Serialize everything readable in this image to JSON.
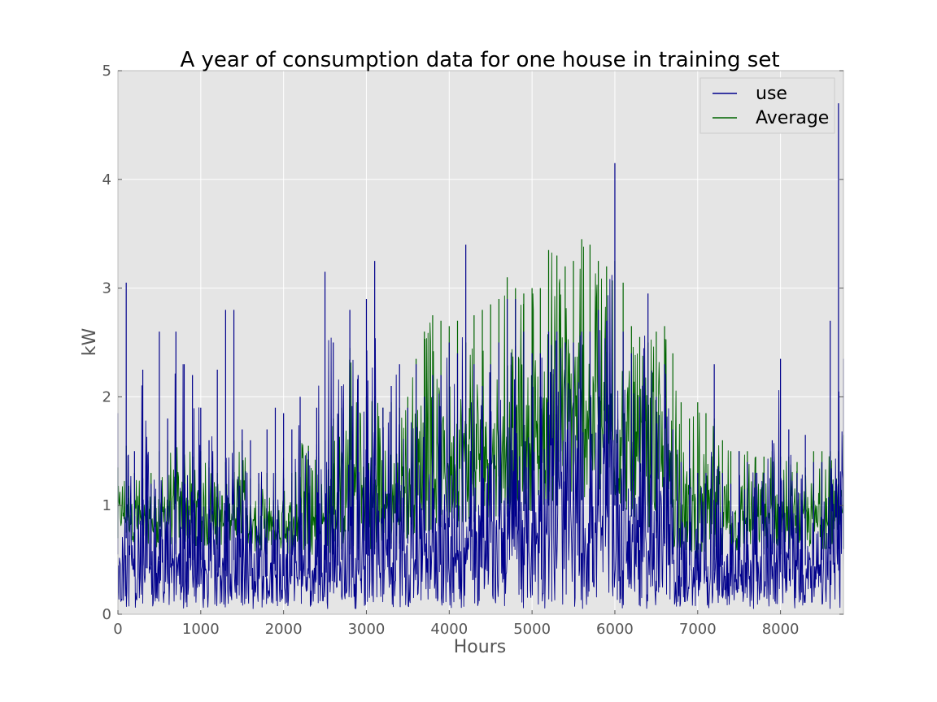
{
  "chart_data": {
    "type": "line",
    "title": "A year of consumption data for one house in training set",
    "xlabel": "Hours",
    "ylabel": "kW",
    "xlim": [
      0,
      8760
    ],
    "ylim": [
      0,
      5
    ],
    "xticks": [
      0,
      1000,
      2000,
      3000,
      4000,
      5000,
      6000,
      7000,
      8000
    ],
    "yticks": [
      0,
      1,
      2,
      3,
      4,
      5
    ],
    "grid": true,
    "legend_position": "top-right",
    "series": [
      {
        "name": "use",
        "color": "#00008b",
        "x": [
          0,
          100,
          200,
          300,
          400,
          500,
          600,
          700,
          800,
          900,
          1000,
          1100,
          1200,
          1300,
          1400,
          1500,
          1600,
          1700,
          1800,
          1900,
          2000,
          2100,
          2200,
          2300,
          2400,
          2500,
          2600,
          2700,
          2800,
          2900,
          3000,
          3100,
          3200,
          3300,
          3400,
          3500,
          3600,
          3700,
          3800,
          3900,
          4000,
          4100,
          4200,
          4300,
          4400,
          4500,
          4600,
          4700,
          4800,
          4900,
          5000,
          5100,
          5200,
          5300,
          5400,
          5500,
          5600,
          5700,
          5800,
          5900,
          6000,
          6100,
          6200,
          6300,
          6400,
          6500,
          6600,
          6700,
          6800,
          6900,
          7000,
          7100,
          7200,
          7300,
          7400,
          7500,
          7600,
          7700,
          7800,
          7900,
          8000,
          8100,
          8200,
          8300,
          8400,
          8500,
          8600,
          8700,
          8760
        ],
        "y_min": [
          0.05,
          0.05,
          0.05,
          0.05,
          0.05,
          0.05,
          0.05,
          0.05,
          0.05,
          0.05,
          0.05,
          0.05,
          0.05,
          0.05,
          0.05,
          0.05,
          0.05,
          0.05,
          0.05,
          0.05,
          0.05,
          0.05,
          0.05,
          0.05,
          0.05,
          0.05,
          0.05,
          0.05,
          0.05,
          0.05,
          0.05,
          0.05,
          0.05,
          0.05,
          0.05,
          0.05,
          0.05,
          0.05,
          0.05,
          0.05,
          0.05,
          0.05,
          0.05,
          0.05,
          0.05,
          0.05,
          0.05,
          0.05,
          0.05,
          0.05,
          0.05,
          0.05,
          0.05,
          0.05,
          0.05,
          0.05,
          0.05,
          0.05,
          0.05,
          0.05,
          0.05,
          0.05,
          0.05,
          0.05,
          0.05,
          0.05,
          0.05,
          0.05,
          0.05,
          0.05,
          0.05,
          0.05,
          0.05,
          0.05,
          0.05,
          0.05,
          0.05,
          0.05,
          0.05,
          0.05,
          0.05,
          0.05,
          0.05,
          0.05,
          0.05,
          0.05,
          0.05,
          0.05,
          0.05
        ],
        "y_max": [
          1.85,
          3.05,
          1.5,
          2.25,
          1.2,
          2.6,
          1.8,
          2.6,
          2.3,
          2.2,
          1.9,
          1.6,
          2.25,
          2.8,
          2.8,
          1.7,
          1.6,
          1.3,
          1.7,
          1.9,
          1.85,
          1.7,
          2.0,
          1.5,
          1.9,
          3.15,
          2.5,
          2.1,
          2.8,
          2.2,
          2.9,
          3.25,
          1.9,
          2.1,
          2.3,
          1.9,
          2.3,
          2.0,
          2.2,
          2.2,
          2.5,
          2.4,
          3.4,
          2.3,
          2.1,
          2.3,
          2.5,
          2.9,
          2.9,
          2.6,
          2.4,
          2.4,
          2.6,
          2.6,
          2.5,
          2.5,
          2.6,
          2.6,
          2.8,
          2.7,
          4.15,
          2.6,
          2.4,
          2.0,
          2.95,
          2.0,
          2.3,
          1.7,
          1.4,
          1.6,
          1.3,
          1.3,
          2.3,
          1.3,
          1.2,
          1.5,
          1.4,
          1.3,
          1.3,
          1.6,
          2.35,
          1.7,
          1.3,
          1.65,
          1.4,
          1.4,
          2.7,
          4.7,
          2.35
        ],
        "y_typical": [
          0.55,
          0.7,
          0.5,
          0.45,
          0.45,
          0.5,
          0.5,
          0.55,
          0.6,
          0.5,
          0.5,
          0.4,
          0.4,
          0.4,
          0.5,
          0.55,
          0.35,
          0.35,
          0.35,
          0.4,
          0.35,
          0.35,
          0.4,
          0.4,
          0.45,
          0.5,
          0.55,
          0.5,
          0.55,
          0.5,
          0.55,
          0.55,
          0.55,
          0.6,
          0.6,
          0.65,
          0.7,
          0.75,
          0.75,
          0.8,
          0.8,
          0.8,
          0.85,
          0.85,
          0.85,
          0.85,
          0.9,
          0.9,
          0.9,
          0.95,
          0.95,
          0.95,
          1.0,
          1.0,
          1.05,
          1.05,
          1.05,
          1.05,
          1.0,
          1.0,
          1.0,
          0.95,
          0.9,
          0.8,
          0.75,
          0.7,
          0.65,
          0.55,
          0.5,
          0.45,
          0.4,
          0.4,
          0.4,
          0.45,
          0.45,
          0.5,
          0.5,
          0.55,
          0.55,
          0.55,
          0.55,
          0.5,
          0.5,
          0.45,
          0.45,
          0.5,
          0.55,
          0.6,
          0.6
        ]
      },
      {
        "name": "Average",
        "color": "#006400",
        "x": [
          0,
          100,
          200,
          300,
          400,
          500,
          600,
          700,
          800,
          900,
          1000,
          1100,
          1200,
          1300,
          1400,
          1500,
          1600,
          1700,
          1800,
          1900,
          2000,
          2100,
          2200,
          2300,
          2400,
          2500,
          2600,
          2700,
          2800,
          2900,
          3000,
          3100,
          3200,
          3300,
          3400,
          3500,
          3600,
          3700,
          3800,
          3900,
          4000,
          4100,
          4200,
          4300,
          4400,
          4500,
          4600,
          4700,
          4800,
          4900,
          5000,
          5100,
          5200,
          5300,
          5400,
          5500,
          5600,
          5700,
          5800,
          5900,
          6000,
          6100,
          6200,
          6300,
          6400,
          6500,
          6600,
          6700,
          6800,
          6900,
          7000,
          7100,
          7200,
          7300,
          7400,
          7500,
          7600,
          7700,
          7800,
          7900,
          8000,
          8100,
          8200,
          8300,
          8400,
          8500,
          8600,
          8700,
          8760
        ],
        "y_min": [
          0.7,
          0.75,
          0.65,
          0.65,
          0.65,
          0.6,
          0.6,
          0.65,
          0.65,
          0.65,
          0.6,
          0.6,
          0.6,
          0.65,
          0.7,
          0.75,
          0.6,
          0.55,
          0.55,
          0.55,
          0.55,
          0.55,
          0.55,
          0.55,
          0.55,
          0.55,
          0.55,
          0.6,
          0.6,
          0.6,
          0.6,
          0.6,
          0.6,
          0.65,
          0.65,
          0.7,
          0.75,
          0.75,
          0.75,
          0.8,
          0.8,
          0.8,
          0.85,
          0.85,
          0.85,
          0.9,
          0.9,
          0.9,
          0.9,
          0.95,
          0.95,
          0.95,
          1.0,
          1.0,
          1.05,
          1.05,
          1.05,
          1.05,
          1.0,
          1.0,
          1.0,
          0.95,
          0.9,
          0.85,
          0.8,
          0.75,
          0.7,
          0.6,
          0.55,
          0.55,
          0.5,
          0.5,
          0.5,
          0.55,
          0.55,
          0.55,
          0.6,
          0.6,
          0.6,
          0.6,
          0.6,
          0.6,
          0.6,
          0.6,
          0.6,
          0.6,
          0.6,
          0.6,
          0.6
        ],
        "y_max": [
          1.35,
          1.55,
          1.3,
          1.25,
          1.3,
          1.5,
          1.6,
          1.6,
          1.6,
          1.45,
          1.5,
          1.35,
          1.3,
          1.4,
          1.6,
          1.6,
          1.25,
          1.2,
          1.3,
          1.3,
          1.25,
          1.3,
          1.6,
          1.55,
          1.45,
          1.6,
          1.8,
          1.9,
          2.45,
          1.95,
          2.0,
          2.0,
          1.9,
          1.95,
          1.9,
          2.0,
          2.35,
          2.6,
          2.75,
          2.7,
          2.65,
          2.7,
          2.5,
          2.75,
          2.8,
          2.85,
          2.9,
          3.1,
          3.0,
          2.95,
          3.0,
          3.0,
          3.35,
          3.3,
          3.2,
          3.25,
          3.45,
          3.4,
          3.25,
          3.2,
          3.25,
          3.05,
          2.65,
          2.55,
          2.5,
          2.6,
          2.65,
          2.4,
          1.95,
          1.8,
          1.95,
          1.85,
          1.8,
          1.6,
          1.5,
          1.5,
          1.5,
          1.45,
          1.45,
          1.5,
          1.45,
          1.45,
          1.4,
          1.35,
          1.5,
          1.5,
          1.5,
          1.5,
          1.65
        ]
      }
    ]
  }
}
